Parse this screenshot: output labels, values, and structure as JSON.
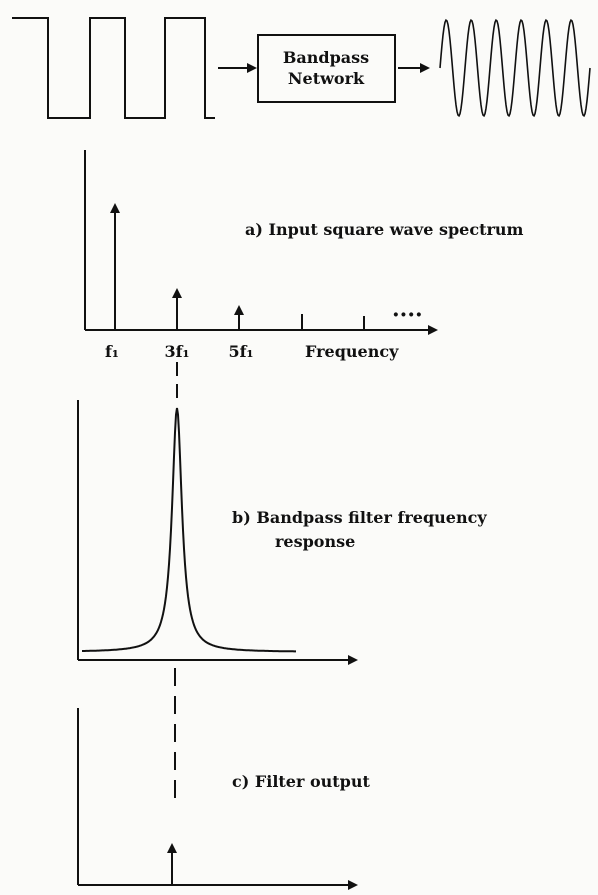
{
  "block": {
    "lines": [
      "Bandpass",
      "Network"
    ]
  },
  "spectrum": {
    "caption": "a)  Input square wave spectrum",
    "labels": [
      "f₁",
      "3f₁",
      "5f₁"
    ],
    "axis_label": "Frequency",
    "more": "····"
  },
  "filter": {
    "caption_lines": [
      "b)  Bandpass filter frequency",
      "response"
    ]
  },
  "output": {
    "caption": "c)  Filter output"
  }
}
